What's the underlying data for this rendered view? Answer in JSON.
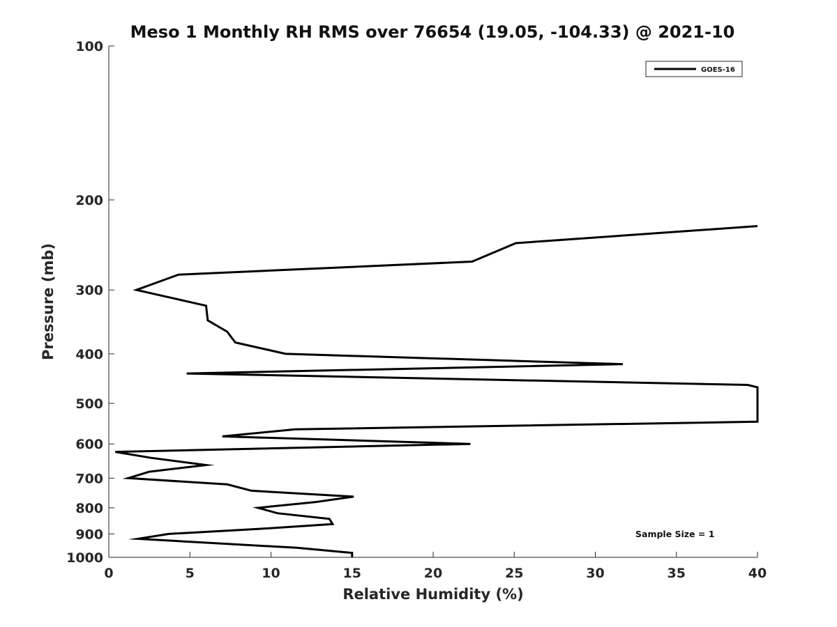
{
  "chart_data": {
    "type": "line",
    "title": "Meso 1 Monthly RH RMS over 76654 (19.05, -104.33) @ 2021-10",
    "xlabel": "Relative Humidity (%)",
    "ylabel": "Pressure (mb)",
    "xlim": [
      0,
      40
    ],
    "ylim": [
      100,
      1000
    ],
    "y_scale": "log",
    "y_reversed": true,
    "x_ticks": [
      0,
      5,
      10,
      15,
      20,
      25,
      30,
      35,
      40
    ],
    "x_tick_labels": [
      "0",
      "5",
      "10",
      "15",
      "20",
      "25",
      "30",
      "35",
      "40"
    ],
    "y_ticks": [
      100,
      200,
      300,
      400,
      500,
      600,
      700,
      800,
      900,
      1000
    ],
    "y_tick_labels": [
      "100",
      "200",
      "300",
      "400",
      "500",
      "600",
      "700",
      "800",
      "900",
      "1000"
    ],
    "grid": false,
    "legend_position": "top-right",
    "series": [
      {
        "name": "GOES-16",
        "color": "#000000",
        "points": [
          [
            40.0,
            225
          ],
          [
            25.1,
            243
          ],
          [
            22.4,
            264
          ],
          [
            4.3,
            280
          ],
          [
            1.7,
            300
          ],
          [
            6.0,
            322
          ],
          [
            6.1,
            344
          ],
          [
            7.3,
            362
          ],
          [
            7.8,
            380
          ],
          [
            10.9,
            400
          ],
          [
            31.7,
            419
          ],
          [
            4.8,
            437
          ],
          [
            39.4,
            460
          ],
          [
            40.0,
            465
          ],
          [
            40.0,
            543
          ],
          [
            11.5,
            562
          ],
          [
            7.0,
            580
          ],
          [
            22.3,
            600
          ],
          [
            0.4,
            622
          ],
          [
            2.6,
            639
          ],
          [
            6.0,
            660
          ],
          [
            2.5,
            680
          ],
          [
            1.2,
            700
          ],
          [
            7.3,
            720
          ],
          [
            8.8,
            741
          ],
          [
            15.1,
            761
          ],
          [
            12.7,
            780
          ],
          [
            9.2,
            800
          ],
          [
            10.4,
            820
          ],
          [
            13.6,
            841
          ],
          [
            13.8,
            861
          ],
          [
            9.2,
            880
          ],
          [
            3.7,
            900
          ],
          [
            1.8,
            920
          ],
          [
            11.6,
            958
          ],
          [
            15.0,
            980
          ],
          [
            15.0,
            1000
          ]
        ]
      }
    ],
    "annotations": [
      {
        "text": "Sample Size = 1"
      }
    ]
  }
}
